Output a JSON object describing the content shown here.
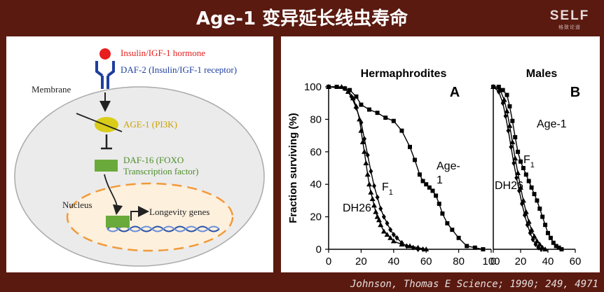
{
  "title": "Age-1 变异延长线虫寿命",
  "logo": {
    "word": "SELF",
    "sub": "格致论道"
  },
  "citation": "Johnson, Thomas E Science; 1990; 249, 4971",
  "diagram": {
    "hormone": "Insulin/IGF-1 hormone",
    "receptor": "DAF-2 (Insulin/IGF-1 receptor)",
    "membrane": "Membrane",
    "age1": "AGE-1 (PI3K)",
    "daf16_line1": "DAF-16 (FOXO",
    "daf16_line2": "Transcription factor)",
    "nucleus": "Nucleus",
    "genes": "Longevity genes",
    "colors": {
      "hormone": "#e81d1d",
      "receptor": "#1f3f9e",
      "age1": "#d9cd1a",
      "daf16": "#6aaa3a",
      "nucleus": "#f29a3a"
    }
  },
  "chart_data": [
    {
      "type": "line",
      "panel_letter": "A",
      "title": "Hermaphrodites",
      "ylabel": "Fraction surviving (%)",
      "xlabel": "",
      "xlim": [
        0,
        100
      ],
      "ylim": [
        0,
        100
      ],
      "xticks": [
        "0",
        "20",
        "40",
        "60",
        "80",
        "100"
      ],
      "yticks": [
        "0",
        "20",
        "40",
        "60",
        "80",
        "100"
      ],
      "series": [
        {
          "name": "Age-1",
          "marker": "square",
          "x": [
            0,
            5,
            10,
            13,
            17,
            20,
            25,
            30,
            35,
            40,
            45,
            50,
            53,
            56,
            58,
            60,
            62,
            64,
            66,
            68,
            70,
            73,
            76,
            80,
            85,
            90,
            95
          ],
          "y": [
            100,
            100,
            99,
            98,
            94,
            89,
            86,
            84,
            81,
            79,
            73,
            63,
            55,
            46,
            42,
            40,
            38,
            36,
            33,
            28,
            22,
            16,
            12,
            7,
            2,
            1,
            0
          ]
        },
        {
          "name": "F1",
          "marker": "triangle",
          "x": [
            0,
            8,
            12,
            15,
            17,
            19,
            20,
            21,
            22,
            23,
            24,
            25,
            26,
            27,
            28,
            29,
            30,
            31,
            32,
            34,
            36,
            38,
            40,
            45,
            50,
            55,
            60
          ],
          "y": [
            100,
            100,
            97,
            93,
            88,
            80,
            73,
            66,
            60,
            53,
            46,
            40,
            35,
            31,
            27,
            23,
            20,
            18,
            15,
            11,
            9,
            7,
            5,
            3,
            2,
            1,
            0
          ]
        },
        {
          "name": "DH26",
          "marker": "diamond",
          "x": [
            0,
            10,
            14,
            17,
            20,
            22,
            24,
            26,
            28,
            30,
            32,
            34,
            36,
            38,
            40,
            42,
            45,
            48,
            52,
            55,
            58
          ],
          "y": [
            100,
            99,
            94,
            87,
            78,
            68,
            58,
            48,
            39,
            32,
            25,
            20,
            16,
            12,
            9,
            7,
            4,
            2,
            1,
            0,
            0
          ]
        }
      ],
      "labels": [
        {
          "series": "Age-1",
          "text": "Age-",
          "text2": "1"
        },
        {
          "series": "F1",
          "text": "F",
          "sub": "1"
        },
        {
          "series": "DH26",
          "text": "DH26"
        }
      ]
    },
    {
      "type": "line",
      "panel_letter": "B",
      "title": "Males",
      "xlim": [
        0,
        60
      ],
      "ylim": [
        0,
        100
      ],
      "xticks": [
        "0",
        "20",
        "40",
        "60"
      ],
      "series": [
        {
          "name": "Age-1",
          "marker": "square",
          "x": [
            0,
            4,
            7,
            10,
            12,
            14,
            16,
            18,
            20,
            22,
            24,
            26,
            28,
            30,
            32,
            34,
            36,
            38,
            40,
            42,
            44,
            46,
            48,
            50
          ],
          "y": [
            100,
            100,
            98,
            95,
            88,
            79,
            69,
            60,
            54,
            50,
            46,
            42,
            38,
            34,
            30,
            25,
            20,
            15,
            10,
            7,
            4,
            2,
            1,
            0
          ]
        },
        {
          "name": "F1",
          "marker": "triangle",
          "x": [
            0,
            5,
            8,
            10,
            12,
            14,
            16,
            18,
            20,
            22,
            24,
            26,
            28,
            30,
            32,
            34,
            36,
            38
          ],
          "y": [
            100,
            98,
            92,
            85,
            76,
            66,
            56,
            47,
            38,
            30,
            23,
            17,
            12,
            8,
            5,
            3,
            1,
            0
          ]
        },
        {
          "name": "DH26",
          "marker": "diamond",
          "x": [
            0,
            4,
            7,
            9,
            11,
            13,
            15,
            17,
            19,
            21,
            23,
            25,
            27,
            29,
            31,
            33,
            35
          ],
          "y": [
            100,
            97,
            90,
            82,
            73,
            63,
            53,
            44,
            36,
            28,
            21,
            15,
            10,
            6,
            3,
            1,
            0
          ]
        }
      ],
      "labels": [
        {
          "series": "Age-1",
          "text": "Age-1"
        },
        {
          "series": "F1",
          "text": "F",
          "sub": "1"
        },
        {
          "series": "DH26",
          "text": "DH26"
        }
      ]
    }
  ]
}
